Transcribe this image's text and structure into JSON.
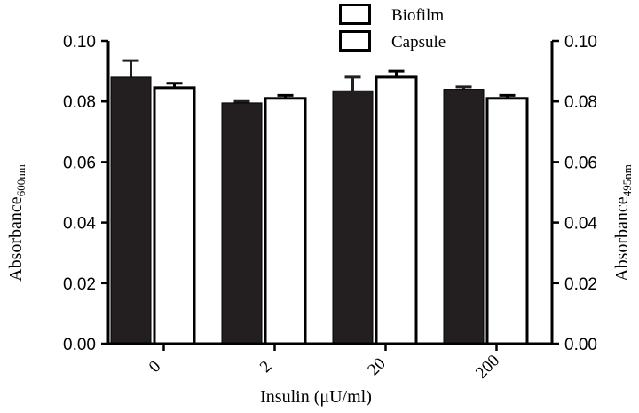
{
  "chart_data": {
    "type": "bar",
    "categories": [
      "0",
      "2",
      "20",
      "200"
    ],
    "series": [
      {
        "name": "Biofilm",
        "values": [
          0.088,
          0.0795,
          0.0835,
          0.084
        ],
        "errors": [
          0.0055,
          0.0005,
          0.0045,
          0.0008
        ],
        "color": "#231f20"
      },
      {
        "name": "Capsule",
        "values": [
          0.0845,
          0.081,
          0.088,
          0.081
        ],
        "errors": [
          0.0015,
          0.001,
          0.002,
          0.001
        ],
        "color": "#ffffff"
      }
    ],
    "xlabel": "Insulin (μU/ml)",
    "ylabel_left": {
      "text": "Absorbance",
      "sub": "600nm"
    },
    "ylabel_right": {
      "text": "Absorbance",
      "sub": "495nm"
    },
    "ylim": [
      0,
      0.1
    ],
    "yticks": [
      "0.00",
      "0.02",
      "0.04",
      "0.06",
      "0.08",
      "0.10"
    ],
    "legend_position": "top-center",
    "grid": false
  }
}
